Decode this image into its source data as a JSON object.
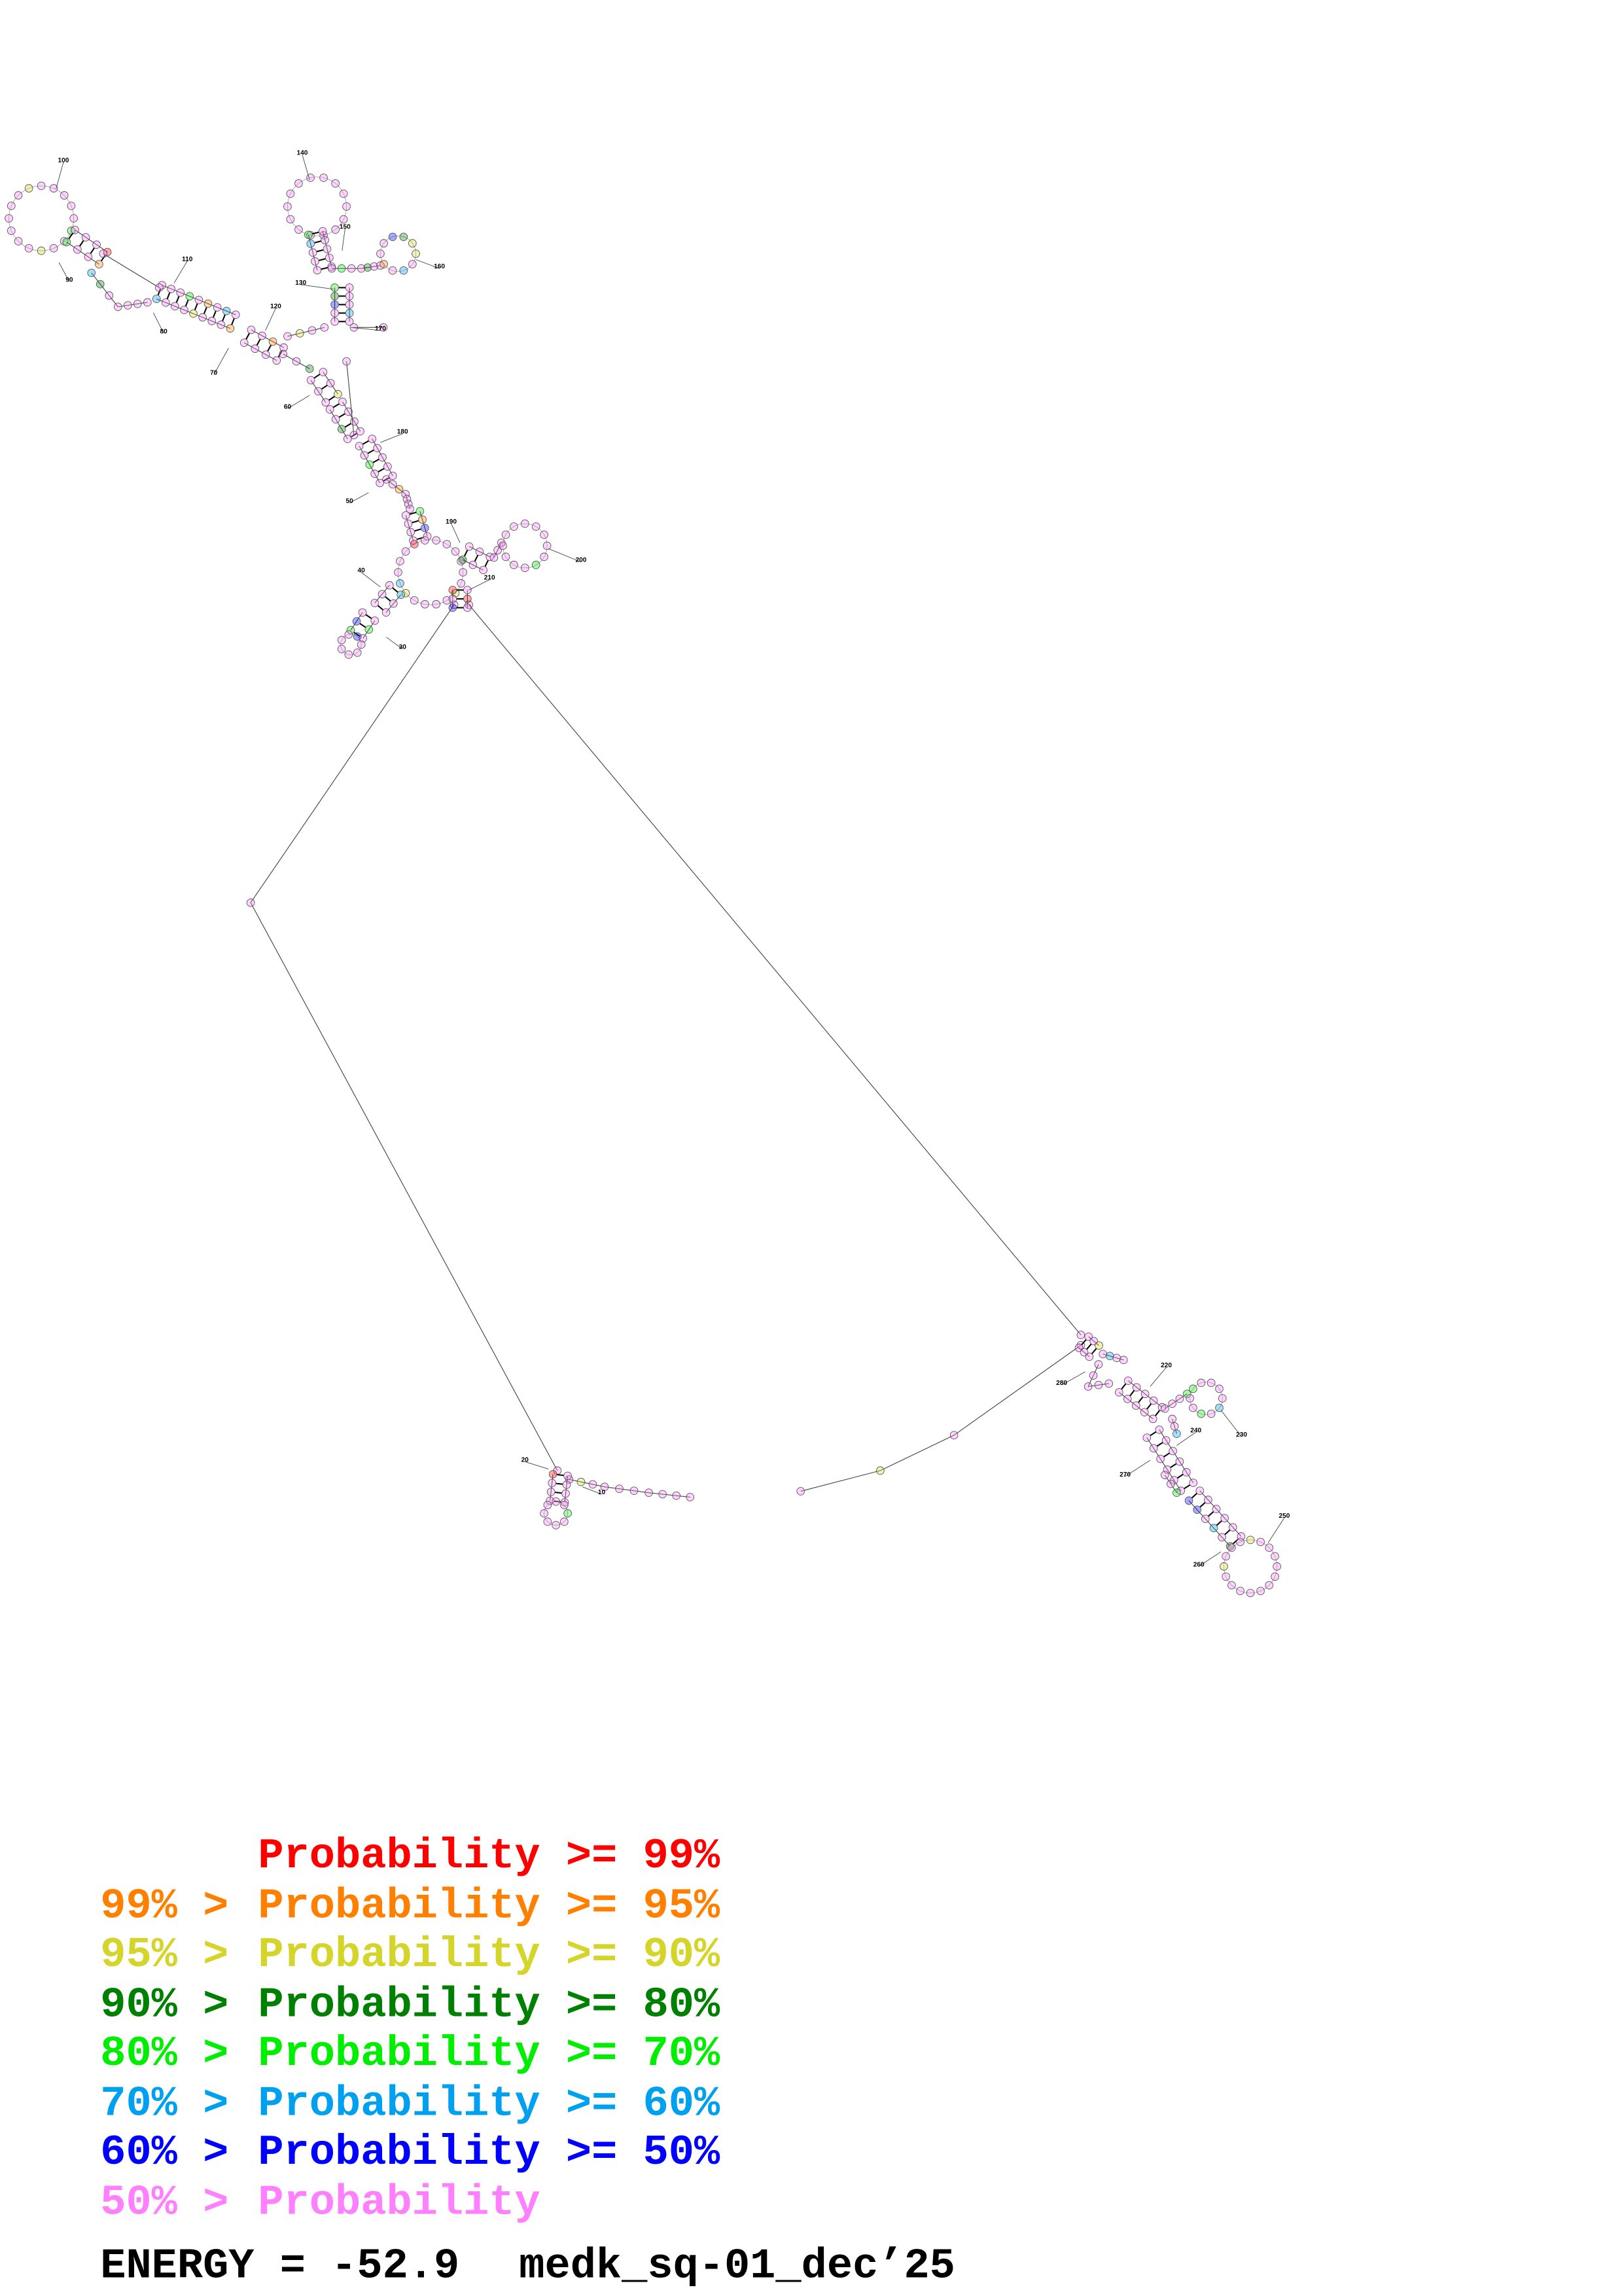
{
  "structure": {
    "position_labels": [
      10,
      20,
      30,
      40,
      50,
      60,
      70,
      80,
      90,
      100,
      110,
      120,
      130,
      140,
      150,
      160,
      170,
      180,
      190,
      200,
      210,
      220,
      230,
      240,
      250,
      260,
      270,
      280
    ]
  },
  "legend": [
    {
      "prefix": "",
      "text": "Probability >= 99%",
      "color": "#ff0000"
    },
    {
      "prefix": "99% > ",
      "text": "Probability >= 95%",
      "color": "#ff8000"
    },
    {
      "prefix": "95% > ",
      "text": "Probability >= 90%",
      "color": "#d4d42a"
    },
    {
      "prefix": "90% > ",
      "text": "Probability >= 80%",
      "color": "#008000"
    },
    {
      "prefix": "80% > ",
      "text": "Probability >= 70%",
      "color": "#00ee00"
    },
    {
      "prefix": "70% > ",
      "text": "Probability >= 60%",
      "color": "#00a0f0"
    },
    {
      "prefix": "60% > ",
      "text": "Probability >= 50%",
      "color": "#0000ff"
    },
    {
      "prefix": "50% > ",
      "text": "Probability",
      "color": "#ff80ff"
    }
  ],
  "footer": {
    "energy": "ENERGY = -52.9",
    "name": "medk_sq-01_dec’25"
  }
}
